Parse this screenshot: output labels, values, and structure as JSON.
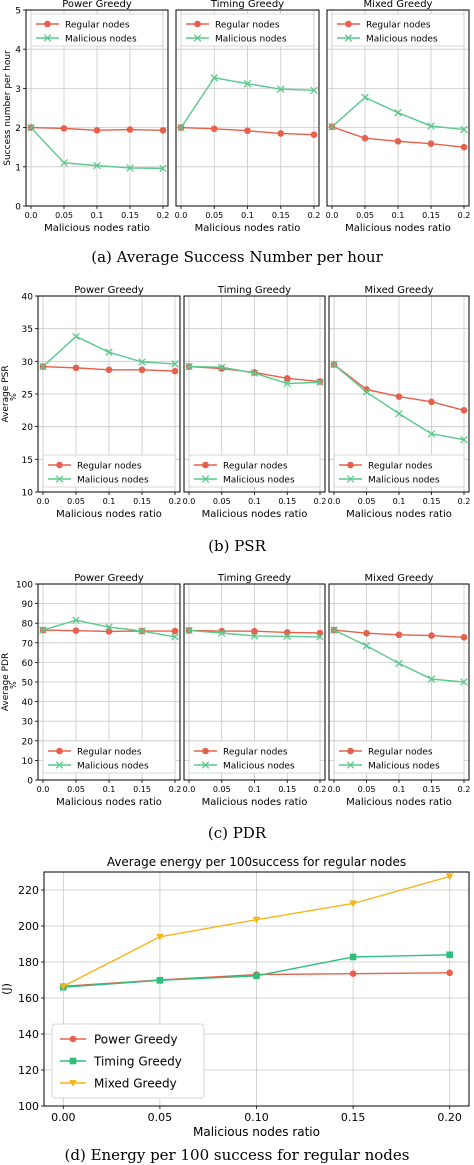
{
  "colors": {
    "regular": "#e8604c",
    "malicious": "#5cc98c",
    "power": "#e8604c",
    "timing": "#2ebf7d",
    "mixed": "#f5b61c",
    "grid": "#c8c8c8"
  },
  "chart_data": [
    {
      "id": "success",
      "type": "line",
      "ylabel": "Success number per hour",
      "xlabel": "Malicious nodes ratio",
      "caption": "(a)  Average Success Number per hour",
      "ylim": [
        0,
        5
      ],
      "yticks": [
        "0",
        "1",
        "2",
        "3",
        "4",
        "5"
      ],
      "legend": "top",
      "panels": [
        {
          "title": "Power Greedy",
          "x": [
            0.0,
            0.05,
            0.1,
            0.15,
            0.2
          ],
          "xticks": [
            "0.0",
            "0.05",
            "0.1",
            "0.15",
            "0.2"
          ],
          "series": [
            {
              "name": "Regular nodes",
              "values": [
                2.0,
                1.98,
                1.93,
                1.95,
                1.93
              ]
            },
            {
              "name": "Malicious nodes",
              "values": [
                2.0,
                1.1,
                1.03,
                0.97,
                0.96
              ]
            }
          ]
        },
        {
          "title": "Timing Greedy",
          "x": [
            0.0,
            0.05,
            0.1,
            0.15,
            0.2
          ],
          "xticks": [
            "0.0",
            "0.05",
            "0.1",
            "0.15",
            "0.2"
          ],
          "series": [
            {
              "name": "Regular nodes",
              "values": [
                2.0,
                1.97,
                1.92,
                1.85,
                1.82
              ]
            },
            {
              "name": "Malicious nodes",
              "values": [
                2.0,
                3.27,
                3.12,
                2.98,
                2.95
              ]
            }
          ]
        },
        {
          "title": "Mixed Greedy",
          "x": [
            0.0,
            0.05,
            0.1,
            0.15,
            0.2
          ],
          "xticks": [
            "0.0",
            "0.05",
            "0.1",
            "0.15",
            "0.2"
          ],
          "series": [
            {
              "name": "Regular nodes",
              "values": [
                2.02,
                1.73,
                1.65,
                1.59,
                1.5
              ]
            },
            {
              "name": "Malicious nodes",
              "values": [
                2.02,
                2.77,
                2.38,
                2.04,
                1.95
              ]
            }
          ]
        }
      ]
    },
    {
      "id": "psr",
      "type": "line",
      "ylabel": "Average PSR",
      "ylabel_unit": "%",
      "xlabel": "Malicious nodes ratio",
      "caption": "(b)  PSR",
      "ylim": [
        10,
        40
      ],
      "yticks": [
        "10",
        "15",
        "20",
        "25",
        "30",
        "35",
        "40"
      ],
      "legend": "bottom",
      "panels": [
        {
          "title": "Power Greedy",
          "x": [
            0.0,
            0.05,
            0.1,
            0.15,
            0.2
          ],
          "xticks": [
            "0.0",
            "0.05",
            "0.1",
            "0.15",
            "0.2"
          ],
          "series": [
            {
              "name": "Regular nodes",
              "values": [
                29.2,
                29.0,
                28.7,
                28.7,
                28.5
              ]
            },
            {
              "name": "Malicious nodes",
              "values": [
                29.2,
                33.8,
                31.4,
                29.9,
                29.6
              ]
            }
          ]
        },
        {
          "title": "Timing Greedy",
          "x": [
            0.0,
            0.05,
            0.1,
            0.15,
            0.2
          ],
          "xticks": [
            "0.0",
            "0.05",
            "0.1",
            "0.15",
            "0.2"
          ],
          "series": [
            {
              "name": "Regular nodes",
              "values": [
                29.2,
                28.9,
                28.3,
                27.4,
                26.9
              ]
            },
            {
              "name": "Malicious nodes",
              "values": [
                29.2,
                29.1,
                28.2,
                26.6,
                26.8
              ]
            }
          ]
        },
        {
          "title": "Mixed Greedy",
          "x": [
            0.0,
            0.05,
            0.1,
            0.15,
            0.2
          ],
          "xticks": [
            "0.0",
            "0.05",
            "0.1",
            "0.15",
            "0.2"
          ],
          "series": [
            {
              "name": "Regular nodes",
              "values": [
                29.5,
                25.7,
                24.6,
                23.8,
                22.5
              ]
            },
            {
              "name": "Malicious nodes",
              "values": [
                29.5,
                25.3,
                22.0,
                18.9,
                18.0
              ]
            }
          ]
        }
      ]
    },
    {
      "id": "pdr",
      "type": "line",
      "ylabel": "Average PDR",
      "ylabel_unit": "%",
      "xlabel": "Malicious nodes ratio",
      "caption": "(c)  PDR",
      "ylim": [
        0,
        100
      ],
      "yticks": [
        "0",
        "10",
        "20",
        "30",
        "40",
        "50",
        "60",
        "70",
        "80",
        "90",
        "100"
      ],
      "legend": "bottom",
      "panels": [
        {
          "title": "Power Greedy",
          "x": [
            0.0,
            0.05,
            0.1,
            0.15,
            0.2
          ],
          "xticks": [
            "0.0",
            "0.05",
            "0.1",
            "0.15",
            "0.2"
          ],
          "series": [
            {
              "name": "Regular nodes",
              "values": [
                76.5,
                76.2,
                75.8,
                76.0,
                76.0
              ]
            },
            {
              "name": "Malicious nodes",
              "values": [
                76.5,
                81.5,
                78.0,
                76.0,
                73.0
              ]
            }
          ]
        },
        {
          "title": "Timing Greedy",
          "x": [
            0.0,
            0.05,
            0.1,
            0.15,
            0.2
          ],
          "xticks": [
            "0.0",
            "0.05",
            "0.1",
            "0.15",
            "0.2"
          ],
          "series": [
            {
              "name": "Regular nodes",
              "values": [
                76.3,
                76.0,
                75.9,
                75.3,
                75.0
              ]
            },
            {
              "name": "Malicious nodes",
              "values": [
                76.3,
                75.0,
                73.5,
                73.3,
                73.0
              ]
            }
          ]
        },
        {
          "title": "Mixed Greedy",
          "x": [
            0.0,
            0.05,
            0.1,
            0.15,
            0.2
          ],
          "xticks": [
            "0.0",
            "0.05",
            "0.1",
            "0.15",
            "0.2"
          ],
          "series": [
            {
              "name": "Regular nodes",
              "values": [
                76.5,
                74.9,
                74.1,
                73.7,
                72.8
              ]
            },
            {
              "name": "Malicious nodes",
              "values": [
                76.5,
                68.5,
                59.5,
                51.5,
                50.0
              ]
            }
          ]
        }
      ]
    },
    {
      "id": "energy",
      "type": "line",
      "title": "Average energy per 100success for regular nodes",
      "ylabel": "(J)",
      "xlabel": "Malicious nodes ratio",
      "caption": "(d)  Energy per 100 success for regular nodes",
      "x": [
        0.0,
        0.05,
        0.1,
        0.15,
        0.2
      ],
      "xlim": [
        -0.01,
        0.21
      ],
      "xticks": [
        "0.00",
        "0.05",
        "0.10",
        "0.15",
        "0.20"
      ],
      "ylim": [
        100,
        230
      ],
      "yticks": [
        "100",
        "120",
        "140",
        "160",
        "180",
        "200",
        "220"
      ],
      "legend": "bottom-left",
      "series": [
        {
          "name": "Power Greedy",
          "marker": "circle",
          "values": [
            166.5,
            170.0,
            173.0,
            173.5,
            174.0
          ]
        },
        {
          "name": "Timing Greedy",
          "marker": "square",
          "values": [
            166.0,
            169.8,
            172.3,
            182.8,
            184.0
          ]
        },
        {
          "name": "Mixed Greedy",
          "marker": "triangle",
          "values": [
            166.5,
            194.0,
            203.5,
            212.5,
            227.5
          ]
        }
      ]
    }
  ]
}
